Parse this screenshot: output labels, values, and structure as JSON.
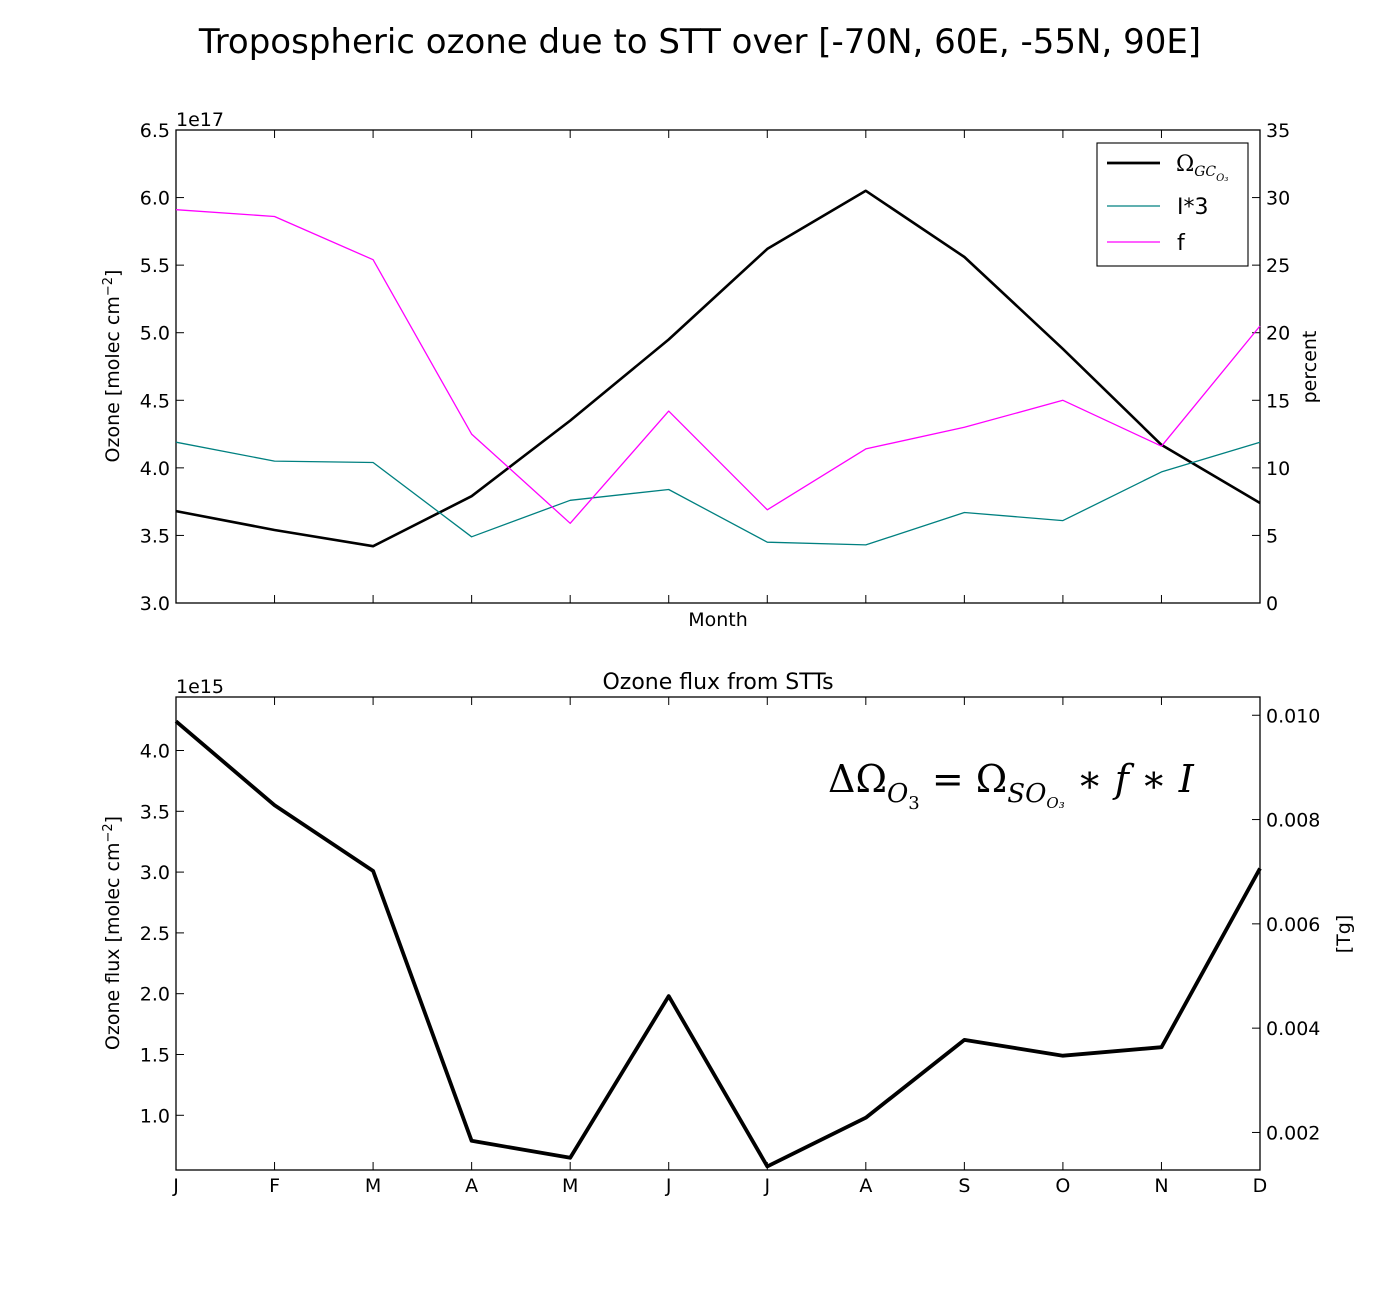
{
  "suptitle": "Tropospheric ozone due to STT over [-70N, 60E, -55N, 90E]",
  "chart_data": [
    {
      "type": "line",
      "title": "",
      "categories": [
        "J",
        "F",
        "M",
        "A",
        "M",
        "J",
        "J",
        "A",
        "S",
        "O",
        "N",
        "D"
      ],
      "xlabel": "Month",
      "ylabel": "Ozone [molec cm",
      "ylabel_sup": "−2",
      "ylabel_end": "]",
      "y_offset_label": "1e17",
      "ylim": [
        3.0,
        6.5
      ],
      "yticks": [
        "3.0",
        "3.5",
        "4.0",
        "4.5",
        "5.0",
        "5.5",
        "6.0",
        "6.5"
      ],
      "y2label": "percent",
      "y2lim": [
        0,
        35
      ],
      "y2ticks": [
        "0",
        "5",
        "10",
        "15",
        "20",
        "25",
        "30",
        "35"
      ],
      "series": [
        {
          "name": "Ω",
          "name_sub": "GC",
          "name_subsub": "O₃",
          "axis": "left",
          "color": "#000000",
          "values": [
            3.68,
            3.54,
            3.42,
            3.79,
            4.35,
            4.95,
            5.62,
            6.05,
            5.56,
            4.88,
            4.17,
            3.74
          ]
        },
        {
          "name": "I*3",
          "axis": "right",
          "color": "#008080",
          "values": [
            11.9,
            10.5,
            10.4,
            4.9,
            7.6,
            8.4,
            4.5,
            4.3,
            6.7,
            6.1,
            9.7,
            11.9
          ]
        },
        {
          "name": "f",
          "axis": "right",
          "color": "#ff00ff",
          "values": [
            29.1,
            28.6,
            25.4,
            12.5,
            5.9,
            14.2,
            6.9,
            11.4,
            13.0,
            15.0,
            11.6,
            20.5
          ]
        }
      ],
      "legend": "top-right",
      "grid": false
    },
    {
      "type": "line",
      "title": "Ozone flux from STTs",
      "categories": [
        "J",
        "F",
        "M",
        "A",
        "M",
        "J",
        "J",
        "A",
        "S",
        "O",
        "N",
        "D"
      ],
      "xlabel": "",
      "ylabel": "Ozone flux [molec cm",
      "ylabel_sup": "−2",
      "ylabel_end": "]",
      "y_offset_label": "1e15",
      "ylim": [
        0.55,
        4.44
      ],
      "yticks": [
        "1.0",
        "1.5",
        "2.0",
        "2.5",
        "3.0",
        "3.5",
        "4.0"
      ],
      "y2label": "[Tg]",
      "y2lim": [
        0.00128,
        0.01035
      ],
      "y2ticks": [
        "0.002",
        "0.004",
        "0.006",
        "0.008",
        "0.010"
      ],
      "series": [
        {
          "axis": "left",
          "color": "#000000",
          "values": [
            4.24,
            3.55,
            3.01,
            0.79,
            0.65,
            1.98,
            0.58,
            0.98,
            1.62,
            1.49,
            1.56,
            3.03
          ]
        }
      ],
      "annotation": {
        "delta": "Δ",
        "omega": "Ω",
        "sub1": "O",
        "subsub1": "3",
        "eq": " = ",
        "sub2": "SO",
        "subsub2": "O₃",
        "rest": " ∗ f ∗ I"
      },
      "grid": false
    }
  ]
}
